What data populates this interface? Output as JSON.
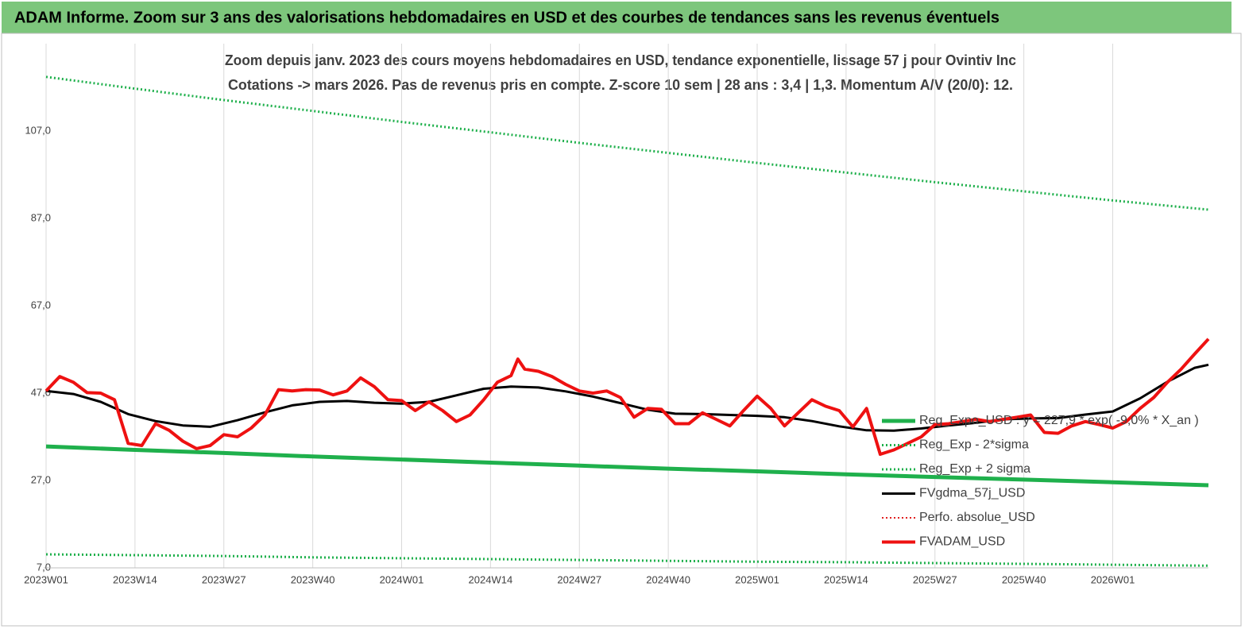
{
  "chart_data": {
    "type": "line",
    "title": "ADAM Informe. Zoom sur 3 ans des valorisations hebdomadaires en USD et des courbes de tendances sans les revenus éventuels",
    "subtitle": [
      "Zoom depuis janv. 2023 des cours moyens hebdomadaires en USD, tendance exponentielle, lissage 57 j pour Ovintiv Inc",
      "Cotations -> mars 2026. Pas de revenus pris en compte. Z-score 10 sem  | 28 ans : 3,4 | 1,3. Momentum A/V (20/0): 12."
    ],
    "xlim": [
      0,
      170
    ],
    "xticks": [
      {
        "value": 0,
        "label": "2023W01"
      },
      {
        "value": 13,
        "label": "2023W14"
      },
      {
        "value": 26,
        "label": "2023W27"
      },
      {
        "value": 39,
        "label": "2023W40"
      },
      {
        "value": 52,
        "label": "2024W01"
      },
      {
        "value": 65,
        "label": "2024W14"
      },
      {
        "value": 78,
        "label": "2024W27"
      },
      {
        "value": 91,
        "label": "2024W40"
      },
      {
        "value": 104,
        "label": "2025W01"
      },
      {
        "value": 117,
        "label": "2025W14"
      },
      {
        "value": 130,
        "label": "2025W27"
      },
      {
        "value": 143,
        "label": "2025W40"
      },
      {
        "value": 156,
        "label": "2026W01"
      }
    ],
    "ylim": [
      7,
      127
    ],
    "yticks": [
      {
        "value": 7,
        "label": "7,0"
      },
      {
        "value": 27,
        "label": "27,0"
      },
      {
        "value": 47,
        "label": "47,0"
      },
      {
        "value": 67,
        "label": "67,0"
      },
      {
        "value": 87,
        "label": "87,0"
      },
      {
        "value": 107,
        "label": "107,0"
      }
    ],
    "grid": true,
    "series": [
      {
        "name": "Reg_Expo_USD : y = 227,9 * exp( -9,0% * X_an )",
        "color": "#1fb04c",
        "style": "solid",
        "width": 5,
        "x": [
          0,
          13,
          26,
          39,
          52,
          65,
          78,
          91,
          104,
          117,
          130,
          143,
          156,
          170
        ],
        "values": [
          34.8,
          34.0,
          33.3,
          32.5,
          31.8,
          31.1,
          30.4,
          29.7,
          29.1,
          28.4,
          27.8,
          27.2,
          26.6,
          25.9
        ]
      },
      {
        "name": "Reg_Exp - 2*sigma",
        "color": "#1fb04c",
        "style": "dotted",
        "width": 3,
        "x": [
          0,
          13,
          26,
          39,
          52,
          65,
          78,
          91,
          104,
          117,
          130,
          143,
          156,
          170
        ],
        "values": [
          10.1,
          9.9,
          9.7,
          9.4,
          9.2,
          9.0,
          8.8,
          8.6,
          8.4,
          8.3,
          8.1,
          7.9,
          7.7,
          7.5
        ]
      },
      {
        "name": "Reg_Exp + 2 sigma",
        "color": "#1fb04c",
        "style": "dotted",
        "width": 3,
        "x": [
          0,
          13,
          26,
          39,
          52,
          65,
          78,
          91,
          104,
          117,
          130,
          143,
          156,
          170
        ],
        "values": [
          119.4,
          116.7,
          114.1,
          111.6,
          109.1,
          106.7,
          104.3,
          102.0,
          99.7,
          97.5,
          95.3,
          93.2,
          91.1,
          89.0
        ]
      },
      {
        "name": "FVgdma_57j_USD",
        "color": "#000000",
        "style": "solid",
        "width": 3,
        "x": [
          0,
          4,
          8,
          12,
          16,
          20,
          24,
          28,
          32,
          36,
          40,
          44,
          48,
          52,
          56,
          60,
          64,
          68,
          72,
          76,
          80,
          84,
          88,
          92,
          96,
          100,
          104,
          108,
          112,
          116,
          120,
          124,
          128,
          132,
          136,
          140,
          144,
          148,
          152,
          156,
          160,
          164,
          168,
          170
        ],
        "values": [
          47.5,
          46.8,
          45.0,
          42.2,
          40.6,
          39.6,
          39.3,
          40.8,
          42.6,
          44.2,
          45.0,
          45.2,
          44.8,
          44.6,
          45.0,
          46.5,
          48.0,
          48.5,
          48.3,
          47.4,
          46.2,
          44.7,
          43.2,
          42.3,
          42.2,
          42.0,
          41.8,
          41.5,
          40.6,
          39.4,
          38.5,
          38.4,
          38.9,
          39.6,
          40.2,
          41.0,
          41.2,
          41.3,
          42.1,
          42.8,
          45.8,
          49.6,
          52.8,
          53.5
        ]
      },
      {
        "name": "Perfo. absolue_USD",
        "color": "#e02020",
        "style": "dotted",
        "width": 2,
        "x": [],
        "values": []
      },
      {
        "name": "FVADAM_USD",
        "color": "#ee1111",
        "style": "solid",
        "width": 4,
        "x": [
          0,
          2,
          4,
          6,
          8,
          10,
          12,
          14,
          16,
          18,
          20,
          22,
          24,
          26,
          28,
          30,
          32,
          34,
          36,
          38,
          40,
          42,
          44,
          46,
          48,
          50,
          52,
          54,
          56,
          58,
          60,
          62,
          64,
          66,
          68,
          69,
          70,
          72,
          74,
          76,
          78,
          80,
          82,
          84,
          86,
          88,
          90,
          92,
          94,
          96,
          98,
          100,
          102,
          104,
          106,
          108,
          110,
          112,
          114,
          116,
          118,
          120,
          122,
          124,
          126,
          128,
          130,
          132,
          134,
          136,
          138,
          140,
          142,
          144,
          146,
          148,
          150,
          152,
          154,
          156,
          158,
          160,
          162,
          164,
          166,
          168,
          170
        ],
        "values": [
          47.5,
          50.8,
          49.5,
          47.1,
          47.0,
          45.5,
          35.5,
          35.0,
          40.0,
          38.5,
          36.0,
          34.3,
          35.0,
          37.5,
          37.0,
          39.0,
          42.0,
          47.8,
          47.5,
          47.8,
          47.7,
          46.6,
          47.5,
          50.5,
          48.5,
          45.5,
          45.3,
          43.0,
          45.0,
          43.0,
          40.5,
          42.0,
          45.5,
          49.5,
          51.0,
          54.8,
          52.5,
          52.0,
          50.8,
          49.0,
          47.5,
          47.0,
          47.5,
          46.0,
          41.5,
          43.5,
          43.3,
          40.0,
          40.0,
          42.5,
          41.0,
          39.5,
          43.0,
          46.3,
          43.5,
          39.5,
          42.5,
          45.5,
          44.0,
          43.0,
          39.3,
          43.5,
          33.0,
          34.0,
          35.5,
          37.0,
          39.8,
          40.0,
          40.5,
          41.0,
          40.5,
          41.0,
          41.5,
          42.0,
          38.0,
          37.8,
          39.5,
          40.5,
          39.8,
          39.0,
          40.5,
          43.5,
          46.0,
          49.5,
          52.5,
          56.0,
          59.4
        ]
      }
    ]
  }
}
